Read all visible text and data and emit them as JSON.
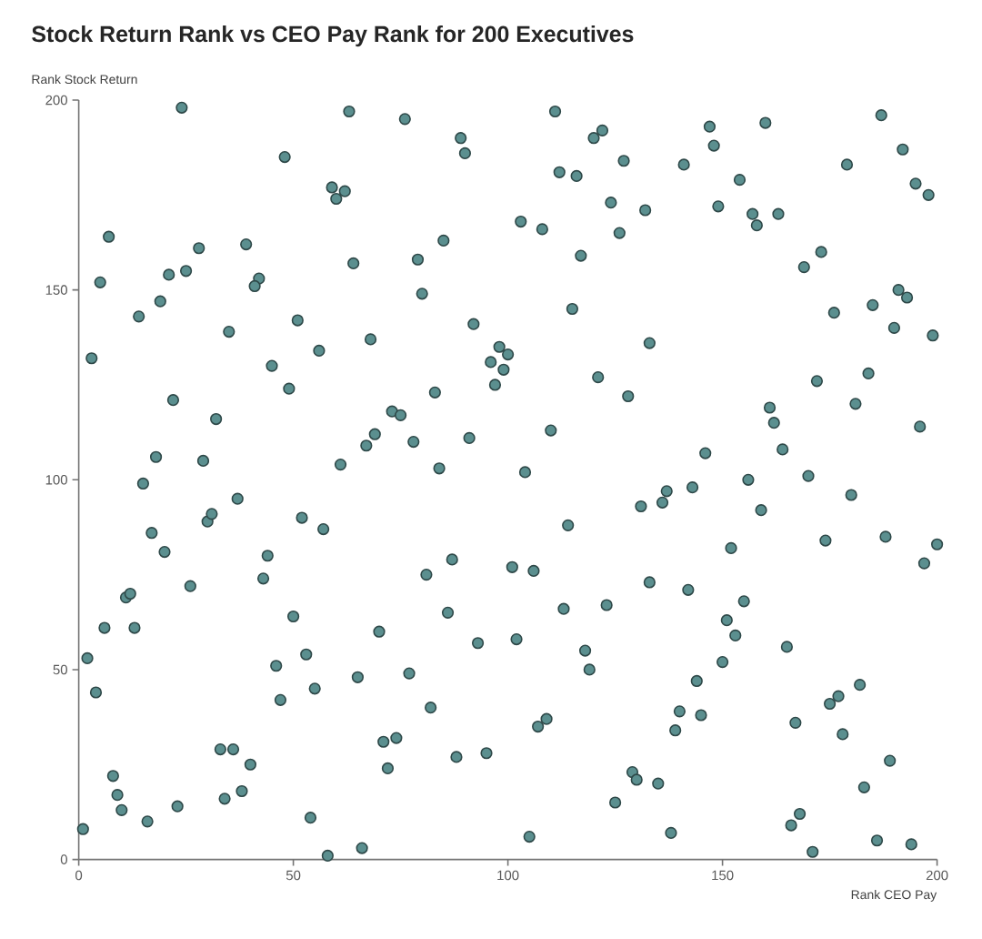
{
  "chart_data": {
    "type": "scatter",
    "title": "Stock Return Rank vs CEO Pay Rank for 200 Executives",
    "xlabel": "Rank CEO Pay",
    "ylabel": "Rank Stock Return",
    "x": [
      24,
      63,
      48,
      59,
      60,
      62,
      7,
      28,
      39,
      64,
      5,
      21,
      25,
      42,
      41,
      19,
      14,
      51,
      35,
      3,
      56,
      45,
      49,
      22,
      32,
      18,
      29,
      61,
      67,
      76,
      89,
      90,
      111,
      120,
      122,
      127,
      112,
      116,
      124,
      132,
      126,
      103,
      108,
      117,
      85,
      79,
      80,
      115,
      92,
      68,
      133,
      98,
      100,
      96,
      99,
      97,
      121,
      128,
      83,
      73,
      75,
      69,
      78,
      91,
      110,
      84,
      104,
      147,
      148,
      160,
      141,
      154,
      149,
      157,
      158,
      163,
      187,
      192,
      179,
      195,
      198,
      173,
      169,
      191,
      193,
      176,
      185,
      190,
      199,
      172,
      184,
      181,
      196,
      161,
      162,
      164,
      146,
      156,
      170,
      15,
      17,
      20,
      30,
      31,
      37,
      52,
      57,
      44,
      43,
      26,
      11,
      12,
      6,
      13,
      50,
      2,
      53,
      46,
      4,
      55,
      47,
      65,
      33,
      36,
      40,
      8,
      9,
      10,
      23,
      34,
      38,
      16,
      1,
      54,
      58,
      66,
      131,
      114,
      87,
      81,
      101,
      106,
      133,
      86,
      113,
      123,
      70,
      93,
      102,
      118,
      119,
      77,
      82,
      107,
      109,
      71,
      74,
      72,
      88,
      95,
      129,
      130,
      135,
      125,
      105,
      137,
      136,
      143,
      159,
      180,
      152,
      174,
      188,
      200,
      197,
      142,
      155,
      151,
      153,
      150,
      165,
      144,
      140,
      145,
      139,
      175,
      177,
      182,
      167,
      178,
      189,
      183,
      138,
      166,
      168,
      171,
      186,
      194
    ],
    "values": [
      198,
      197,
      185,
      177,
      174,
      176,
      164,
      161,
      162,
      157,
      152,
      154,
      155,
      153,
      151,
      147,
      143,
      142,
      139,
      132,
      134,
      130,
      124,
      121,
      116,
      106,
      105,
      104,
      109,
      195,
      190,
      186,
      197,
      190,
      192,
      184,
      181,
      180,
      173,
      171,
      165,
      168,
      166,
      159,
      163,
      158,
      149,
      145,
      141,
      137,
      136,
      135,
      133,
      131,
      129,
      125,
      127,
      122,
      123,
      118,
      117,
      112,
      110,
      111,
      113,
      103,
      102,
      193,
      188,
      194,
      183,
      179,
      172,
      170,
      167,
      170,
      196,
      187,
      183,
      178,
      175,
      160,
      156,
      150,
      148,
      144,
      146,
      140,
      138,
      126,
      128,
      120,
      114,
      119,
      115,
      108,
      107,
      100,
      101,
      99,
      86,
      81,
      89,
      91,
      95,
      90,
      87,
      80,
      74,
      72,
      69,
      70,
      61,
      61,
      64,
      53,
      54,
      51,
      44,
      45,
      42,
      48,
      29,
      29,
      25,
      22,
      17,
      13,
      14,
      16,
      18,
      10,
      8,
      11,
      1,
      3,
      93,
      88,
      79,
      75,
      77,
      76,
      73,
      65,
      66,
      67,
      60,
      57,
      58,
      55,
      50,
      49,
      40,
      35,
      37,
      31,
      32,
      24,
      27,
      28,
      23,
      21,
      20,
      15,
      6,
      97,
      94,
      98,
      92,
      96,
      82,
      84,
      85,
      83,
      78,
      71,
      68,
      63,
      59,
      52,
      56,
      47,
      39,
      38,
      34,
      41,
      43,
      46,
      36,
      33,
      26,
      19,
      7,
      9,
      12,
      2,
      5,
      4
    ],
    "color": "#5b8f8f",
    "marker": "circle",
    "xlim": [
      0,
      200
    ],
    "ylim": [
      0,
      200
    ],
    "xticks": [
      0,
      50,
      100,
      150,
      200
    ],
    "yticks": [
      0,
      50,
      100,
      150,
      200
    ]
  }
}
